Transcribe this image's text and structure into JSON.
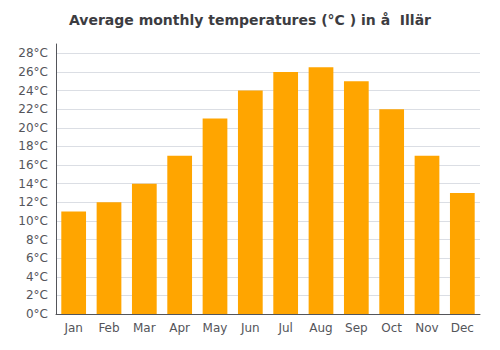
{
  "chart_data": {
    "type": "bar",
    "title": "Average monthly temperatures (°C ) in å  Illär",
    "categories": [
      "Jan",
      "Feb",
      "Mar",
      "Apr",
      "May",
      "Jun",
      "Jul",
      "Aug",
      "Sep",
      "Oct",
      "Nov",
      "Dec"
    ],
    "values": [
      11,
      12,
      14,
      17,
      21,
      24,
      26,
      26.5,
      25,
      22,
      17,
      13
    ],
    "color": "#FFA500",
    "ylim": [
      0,
      29
    ],
    "yticks": [
      {
        "value": 0,
        "label": "0°C"
      },
      {
        "value": 2,
        "label": "2°C"
      },
      {
        "value": 4,
        "label": "4°C"
      },
      {
        "value": 6,
        "label": "6°C"
      },
      {
        "value": 8,
        "label": "8°C"
      },
      {
        "value": 10,
        "label": "10°C"
      },
      {
        "value": 12,
        "label": "12°C"
      },
      {
        "value": 14,
        "label": "14°C"
      },
      {
        "value": 16,
        "label": "16°C"
      },
      {
        "value": 18,
        "label": "18°C"
      },
      {
        "value": 20,
        "label": "20°C"
      },
      {
        "value": 22,
        "label": "22°C"
      },
      {
        "value": 24,
        "label": "24°C"
      },
      {
        "value": 26,
        "label": "26°C"
      },
      {
        "value": 28,
        "label": "28°C"
      }
    ],
    "grid": true
  }
}
